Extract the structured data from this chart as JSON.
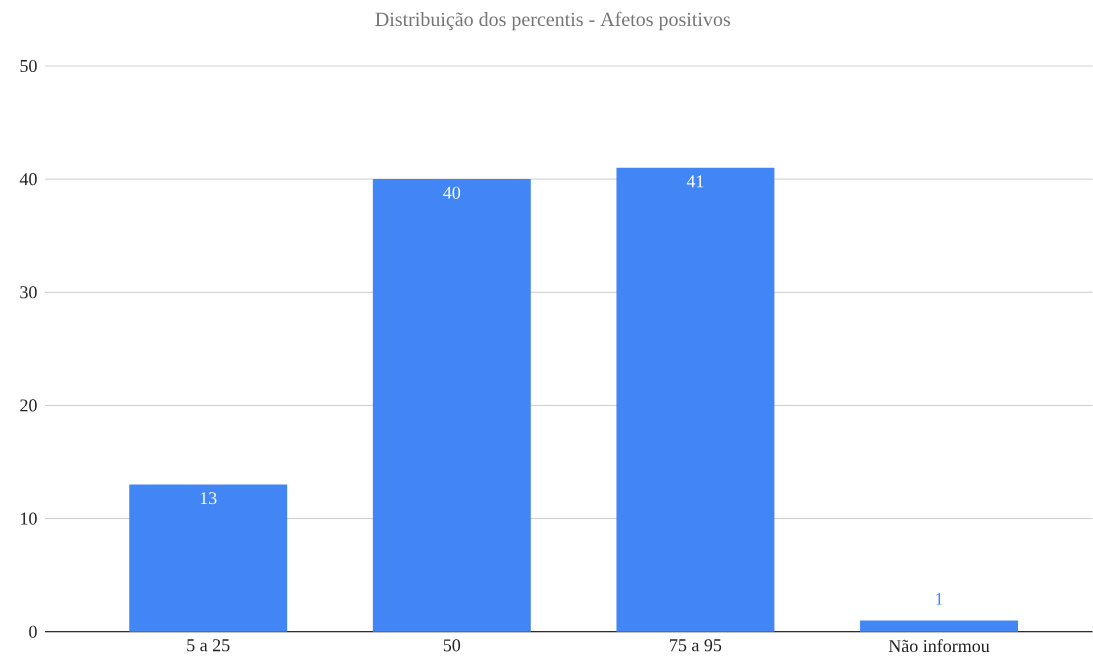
{
  "chart_data": {
    "type": "bar",
    "title": "Distribuição dos percentis - Afetos positivos",
    "categories": [
      "5 a 25",
      "50",
      "75 a 95",
      "Não informou"
    ],
    "values": [
      13,
      40,
      41,
      1
    ],
    "color": "#4285f4",
    "ylim": [
      0,
      50
    ],
    "yticks": [
      0,
      10,
      20,
      30,
      40,
      50
    ],
    "grid": "y",
    "data_labels": true
  }
}
